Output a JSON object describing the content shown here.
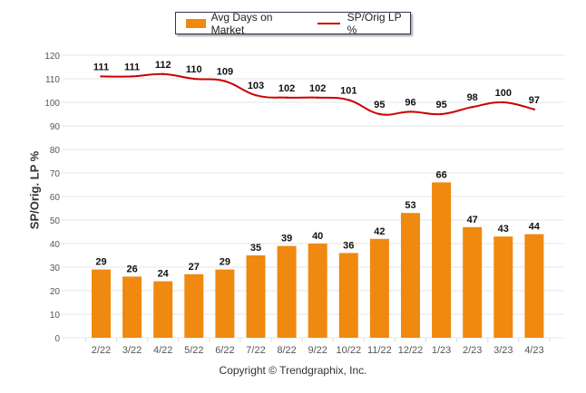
{
  "chart_data": {
    "type": "bar",
    "title": "",
    "xlabel": "",
    "ylabel": "SP/Orig. LP %",
    "ylim": [
      0,
      120
    ],
    "yticks": [
      0,
      10,
      20,
      30,
      40,
      50,
      60,
      70,
      80,
      90,
      100,
      110,
      120
    ],
    "grid": true,
    "legend_position": "top-center",
    "categories": [
      "2/22",
      "3/22",
      "4/22",
      "5/22",
      "6/22",
      "7/22",
      "8/22",
      "9/22",
      "10/22",
      "11/22",
      "12/22",
      "1/23",
      "2/23",
      "3/23",
      "4/23"
    ],
    "series": [
      {
        "name": "Avg Days on Market",
        "type": "bar",
        "color": "#f0890f",
        "values": [
          29,
          26,
          24,
          27,
          29,
          35,
          39,
          40,
          36,
          42,
          53,
          66,
          47,
          43,
          44
        ]
      },
      {
        "name": "SP/Orig LP %",
        "type": "line",
        "color": "#cc0000",
        "values": [
          111,
          111,
          112,
          110,
          109,
          103,
          102,
          102,
          101,
          95,
          96,
          95,
          98,
          100,
          97
        ]
      }
    ],
    "footer": "Copyright © Trendgraphix, Inc."
  }
}
